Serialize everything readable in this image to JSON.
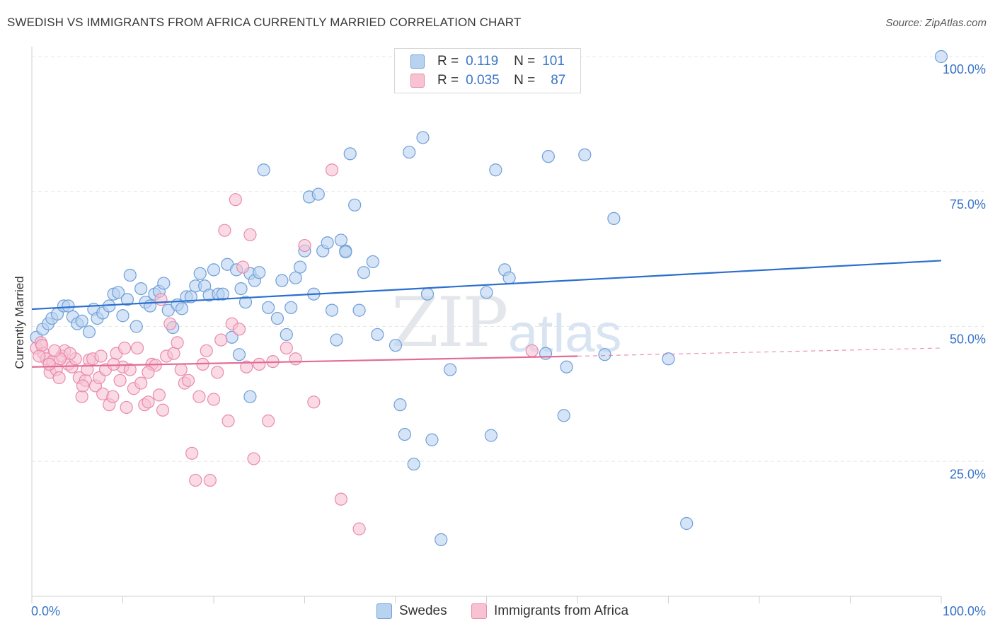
{
  "title": "SWEDISH VS IMMIGRANTS FROM AFRICA CURRENTLY MARRIED CORRELATION CHART",
  "source": "Source: ZipAtlas.com",
  "watermark": {
    "part1": "ZIP",
    "part2": "atlas"
  },
  "legend_top": {
    "rows": [
      {
        "r_label": "R =",
        "r_value": "0.119",
        "n_label": "N =",
        "n_value": "101"
      },
      {
        "r_label": "R =",
        "r_value": "0.035",
        "n_label": "N =",
        "n_value": "87"
      }
    ]
  },
  "legend_bottom": {
    "items": [
      "Swedes",
      "Immigrants from Africa"
    ]
  },
  "colors": {
    "swedes_fill": "#b9d2f0",
    "swedes_stroke": "#6f9fd8",
    "swedes_line": "#2a6fcf",
    "africa_fill": "#f7c3d3",
    "africa_stroke": "#e98aab",
    "africa_line": "#e36b95",
    "tick_label": "#3a74c8",
    "grid": "#e8e8e8"
  },
  "chart_data": {
    "type": "scatter",
    "title": "SWEDISH VS IMMIGRANTS FROM AFRICA CURRENTLY MARRIED CORRELATION CHART",
    "xlabel": "",
    "ylabel": "Currently Married",
    "xlim": [
      0,
      100
    ],
    "ylim": [
      0,
      100
    ],
    "x_tick_labels": [
      "0.0%",
      "100.0%"
    ],
    "y_ticks": [
      25,
      50,
      75,
      100
    ],
    "y_tick_labels": [
      "25.0%",
      "50.0%",
      "75.0%",
      "100.0%"
    ],
    "grid": "horizontal dashed",
    "legend_position": "top-center",
    "series": [
      {
        "name": "Swedes",
        "r": 0.119,
        "n": 101,
        "trend": {
          "x": [
            0,
            100
          ],
          "y": [
            53.2,
            62.2
          ]
        },
        "points": [
          [
            0.5,
            48
          ],
          [
            1.2,
            49.5
          ],
          [
            1.8,
            50.5
          ],
          [
            2.2,
            51.5
          ],
          [
            2.8,
            52.3
          ],
          [
            3.5,
            53.8
          ],
          [
            4,
            53.8
          ],
          [
            4.5,
            51.8
          ],
          [
            5,
            50.5
          ],
          [
            5.5,
            51
          ],
          [
            6.3,
            49
          ],
          [
            6.8,
            53.2
          ],
          [
            7.2,
            51.5
          ],
          [
            7.8,
            52.5
          ],
          [
            8.5,
            53.8
          ],
          [
            9,
            56
          ],
          [
            9.5,
            56.3
          ],
          [
            10,
            52
          ],
          [
            10.5,
            55
          ],
          [
            10.8,
            59.5
          ],
          [
            11.5,
            50
          ],
          [
            12,
            57
          ],
          [
            12.5,
            54.5
          ],
          [
            13,
            53.8
          ],
          [
            13.5,
            56
          ],
          [
            14,
            56.5
          ],
          [
            14.5,
            58
          ],
          [
            15,
            53
          ],
          [
            15.5,
            49.8
          ],
          [
            16,
            54
          ],
          [
            16.5,
            53.3
          ],
          [
            17,
            55.5
          ],
          [
            17.5,
            55.5
          ],
          [
            18,
            57.5
          ],
          [
            18.5,
            59.8
          ],
          [
            19,
            57.5
          ],
          [
            19.5,
            55.8
          ],
          [
            20,
            60.5
          ],
          [
            20.5,
            56
          ],
          [
            21,
            56
          ],
          [
            21.5,
            61.5
          ],
          [
            22,
            48
          ],
          [
            22.5,
            60.5
          ],
          [
            23,
            57
          ],
          [
            23.5,
            54.5
          ],
          [
            24,
            59.8
          ],
          [
            24.5,
            58.5
          ],
          [
            25,
            60
          ],
          [
            25.5,
            79
          ],
          [
            26,
            53.5
          ],
          [
            27,
            51.5
          ],
          [
            27.5,
            58.5
          ],
          [
            28,
            48.5
          ],
          [
            28.5,
            53.5
          ],
          [
            29,
            59
          ],
          [
            29.5,
            61
          ],
          [
            30,
            64
          ],
          [
            30.5,
            74
          ],
          [
            31,
            56
          ],
          [
            31.5,
            74.5
          ],
          [
            32,
            64
          ],
          [
            32.5,
            65.5
          ],
          [
            33,
            53
          ],
          [
            33.5,
            47.5
          ],
          [
            34,
            66
          ],
          [
            34.5,
            64
          ],
          [
            35,
            82
          ],
          [
            35.5,
            72.5
          ],
          [
            36,
            53
          ],
          [
            36.5,
            60
          ],
          [
            37.5,
            62
          ],
          [
            40,
            46.5
          ],
          [
            40.5,
            35.5
          ],
          [
            41,
            30
          ],
          [
            41.5,
            82.3
          ],
          [
            42,
            24.5
          ],
          [
            43,
            85
          ],
          [
            43.5,
            56
          ],
          [
            44,
            29
          ],
          [
            45,
            10.5
          ],
          [
            50,
            56.3
          ],
          [
            50.5,
            29.8
          ],
          [
            51,
            79
          ],
          [
            52,
            60.5
          ],
          [
            52.5,
            59
          ],
          [
            56.5,
            45
          ],
          [
            56.8,
            81.5
          ],
          [
            58.5,
            33.5
          ],
          [
            58.8,
            42.5
          ],
          [
            60.8,
            81.8
          ],
          [
            63,
            44.8
          ],
          [
            64,
            70
          ],
          [
            70,
            44
          ],
          [
            72,
            13.5
          ],
          [
            100,
            100
          ],
          [
            46,
            42
          ],
          [
            38,
            48.5
          ],
          [
            34.5,
            63.8
          ],
          [
            24,
            37
          ],
          [
            22.8,
            44.8
          ]
        ]
      },
      {
        "name": "Immigrants from Africa",
        "r": 0.035,
        "n": 87,
        "trend": {
          "x": [
            0,
            60
          ],
          "y": [
            42.5,
            44.5
          ]
        },
        "trend_dashed": {
          "x": [
            60,
            100
          ],
          "y": [
            44.5,
            46
          ]
        },
        "points": [
          [
            0.5,
            46
          ],
          [
            1,
            47
          ],
          [
            1.3,
            45
          ],
          [
            1.6,
            44
          ],
          [
            2,
            41.5
          ],
          [
            2.3,
            43.5
          ],
          [
            2.7,
            42
          ],
          [
            3,
            40.5
          ],
          [
            3.3,
            44.5
          ],
          [
            3.6,
            45.5
          ],
          [
            4,
            43
          ],
          [
            4.4,
            42.5
          ],
          [
            4.8,
            44
          ],
          [
            5.2,
            40.5
          ],
          [
            5.5,
            37
          ],
          [
            5.9,
            40
          ],
          [
            6.3,
            43.8
          ],
          [
            6.7,
            44
          ],
          [
            7,
            39
          ],
          [
            7.4,
            40.5
          ],
          [
            7.8,
            37.5
          ],
          [
            8.1,
            42
          ],
          [
            8.5,
            35.5
          ],
          [
            8.9,
            37
          ],
          [
            9.3,
            45
          ],
          [
            9.7,
            40
          ],
          [
            10,
            42.5
          ],
          [
            10.4,
            35
          ],
          [
            10.8,
            42
          ],
          [
            11.2,
            38.5
          ],
          [
            11.6,
            46
          ],
          [
            12,
            39.5
          ],
          [
            12.4,
            35.5
          ],
          [
            12.8,
            36
          ],
          [
            13.2,
            43
          ],
          [
            13.6,
            42.8
          ],
          [
            14,
            37.3
          ],
          [
            14.4,
            34.5
          ],
          [
            14.8,
            44.5
          ],
          [
            15.2,
            50.5
          ],
          [
            15.6,
            45
          ],
          [
            16,
            47
          ],
          [
            16.4,
            42
          ],
          [
            16.8,
            39.5
          ],
          [
            17.2,
            40
          ],
          [
            17.6,
            26.5
          ],
          [
            18,
            21.5
          ],
          [
            18.4,
            37
          ],
          [
            18.8,
            43
          ],
          [
            19.2,
            45.5
          ],
          [
            19.6,
            21.5
          ],
          [
            20,
            36.5
          ],
          [
            20.4,
            41.5
          ],
          [
            20.8,
            47.5
          ],
          [
            21.2,
            67.8
          ],
          [
            21.6,
            32.5
          ],
          [
            22,
            50.5
          ],
          [
            22.4,
            73.5
          ],
          [
            22.8,
            49.5
          ],
          [
            23.2,
            61
          ],
          [
            23.6,
            42.5
          ],
          [
            24,
            67
          ],
          [
            24.4,
            25.5
          ],
          [
            25,
            43
          ],
          [
            26,
            32.5
          ],
          [
            26.5,
            43.5
          ],
          [
            28,
            46
          ],
          [
            29,
            44
          ],
          [
            30,
            65
          ],
          [
            31,
            36
          ],
          [
            33,
            79
          ],
          [
            34,
            18
          ],
          [
            36,
            12.5
          ],
          [
            55,
            45.5
          ],
          [
            14.2,
            55
          ],
          [
            10.2,
            46
          ],
          [
            12.8,
            41.5
          ],
          [
            9,
            43
          ],
          [
            7.6,
            44.5
          ],
          [
            6.1,
            42
          ],
          [
            4.2,
            45
          ],
          [
            3.1,
            44
          ],
          [
            1.9,
            43
          ],
          [
            1.1,
            46.5
          ],
          [
            0.8,
            44.5
          ],
          [
            2.5,
            45.5
          ],
          [
            5.6,
            39
          ]
        ]
      }
    ]
  }
}
